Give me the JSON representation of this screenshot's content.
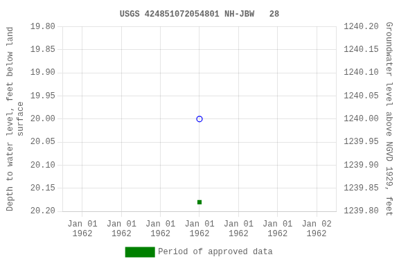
{
  "chart_data": {
    "type": "scatter",
    "title": "USGS 424851072054801 NH-JBW   28",
    "ylabel": "Depth to water level, feet below land\nsurface",
    "y2label": "Groundwater level above NGVD 1929, feet",
    "categories": [
      "Jan 01\n1962",
      "Jan 01\n1962",
      "Jan 01\n1962",
      "Jan 01\n1962",
      "Jan 01\n1962",
      "Jan 01\n1962",
      "Jan 02\n1962"
    ],
    "series": [
      {
        "color": "blue",
        "marker": "open-circle",
        "values": [
          null,
          null,
          null,
          20.0,
          null,
          null,
          null
        ]
      },
      {
        "name": "Period of approved data",
        "color": "#008000",
        "marker": "square",
        "values": [
          null,
          null,
          null,
          20.18,
          null,
          null,
          null
        ]
      }
    ],
    "ylim": [
      20.2,
      19.8
    ],
    "yticks": [
      {
        "value": 19.8,
        "label": "19.80"
      },
      {
        "value": 19.85,
        "label": "19.85"
      },
      {
        "value": 19.9,
        "label": "19.90"
      },
      {
        "value": 19.95,
        "label": "19.95"
      },
      {
        "value": 20.0,
        "label": "20.00"
      },
      {
        "value": 20.05,
        "label": "20.05"
      },
      {
        "value": 20.1,
        "label": "20.10"
      },
      {
        "value": 20.15,
        "label": "20.15"
      },
      {
        "value": 20.2,
        "label": "20.20"
      }
    ],
    "y2lim": [
      1239.8,
      1240.2
    ],
    "y2ticks": [
      {
        "value": 1240.2,
        "label": "1240.20"
      },
      {
        "value": 1240.15,
        "label": "1240.15"
      },
      {
        "value": 1240.1,
        "label": "1240.10"
      },
      {
        "value": 1240.05,
        "label": "1240.05"
      },
      {
        "value": 1240.0,
        "label": "1240.00"
      },
      {
        "value": 1239.95,
        "label": "1239.95"
      },
      {
        "value": 1239.9,
        "label": "1239.90"
      },
      {
        "value": 1239.85,
        "label": "1239.85"
      },
      {
        "value": 1239.8,
        "label": "1239.80"
      }
    ],
    "grid": true,
    "legend": "bottom"
  }
}
